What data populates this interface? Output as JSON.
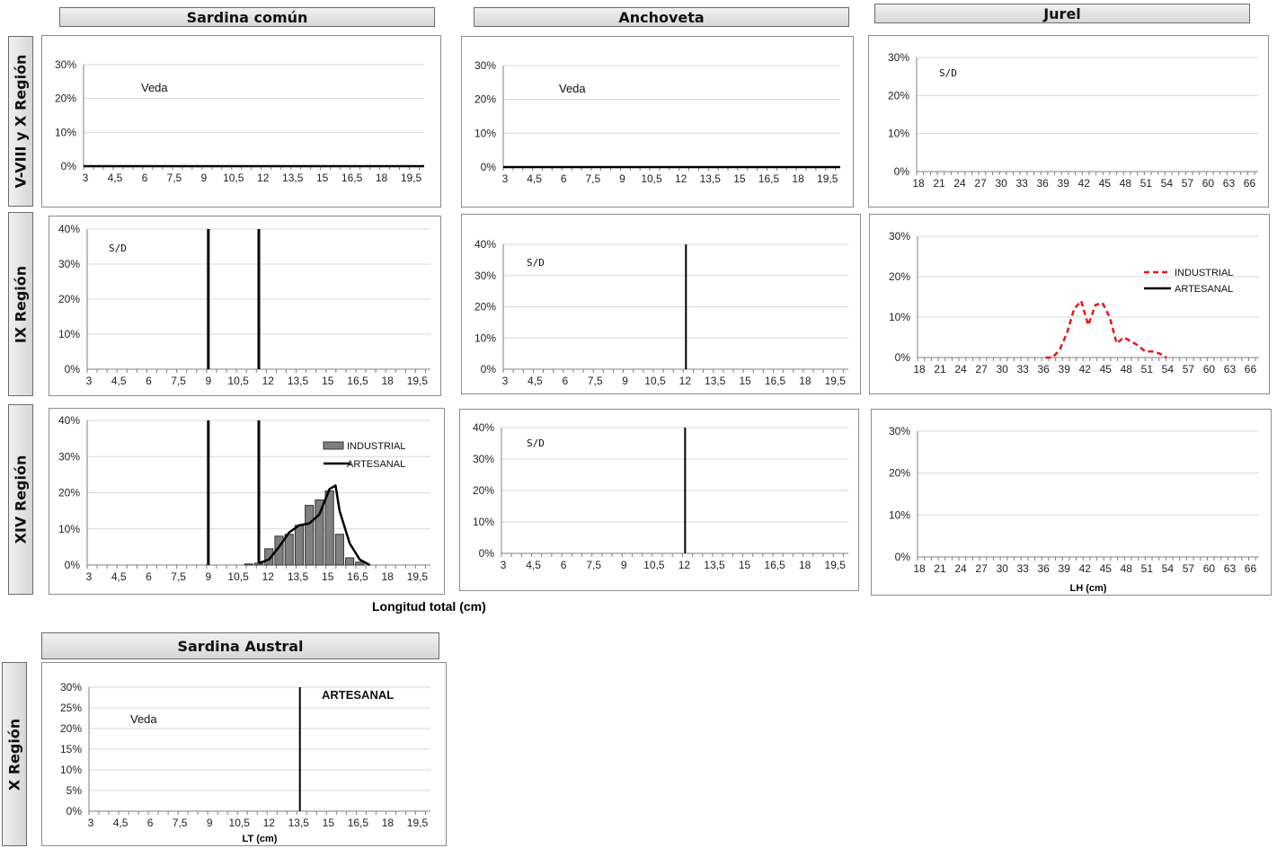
{
  "columns": {
    "sardina": "Sardina común",
    "anchoveta": "Anchoveta",
    "jurel": "Jurel",
    "austral": "Sardina Austral"
  },
  "rows": {
    "r1": "V-VIII y X Región",
    "r2": "IX Región",
    "r3": "XIV Región",
    "r4": "X Región"
  },
  "x_axis_title": "Longitud total (cm)",
  "colors": {
    "industrial_jurel": "#e8151b",
    "industrial_bar": "#7f7f7f",
    "artesanal": "#000000",
    "grid": "#d9d9d9"
  },
  "chart_data": [
    {
      "id": "sardina-r1",
      "type": "line",
      "x_ticks": [
        "3",
        "4,5",
        "6",
        "7,5",
        "9",
        "10,5",
        "12",
        "13,5",
        "15",
        "16,5",
        "18",
        "19,5"
      ],
      "xlim": [
        3,
        20
      ],
      "ylim": [
        0,
        30
      ],
      "y_ticks": [
        "0%",
        "10%",
        "20%",
        "30%"
      ],
      "annotations": [
        "Veda"
      ],
      "series": [
        {
          "values": [
            [
              3,
              0
            ],
            [
              20,
              0
            ]
          ]
        }
      ]
    },
    {
      "id": "anchoveta-r1",
      "type": "line",
      "x_ticks": [
        "3",
        "4,5",
        "6",
        "7,5",
        "9",
        "10,5",
        "12",
        "13,5",
        "15",
        "16,5",
        "18",
        "19,5"
      ],
      "xlim": [
        3,
        20
      ],
      "ylim": [
        0,
        30
      ],
      "y_ticks": [
        "0%",
        "10%",
        "20%",
        "30%"
      ],
      "annotations": [
        "Veda"
      ],
      "series": [
        {
          "values": [
            [
              3,
              0
            ],
            [
              20,
              0
            ]
          ]
        }
      ]
    },
    {
      "id": "jurel-r1",
      "type": "line",
      "x_ticks": [
        "18",
        "21",
        "24",
        "27",
        "30",
        "33",
        "36",
        "39",
        "42",
        "45",
        "48",
        "51",
        "54",
        "57",
        "60",
        "63",
        "66"
      ],
      "xlim": [
        18,
        66
      ],
      "ylim": [
        0,
        30
      ],
      "y_ticks": [
        "0%",
        "10%",
        "20%",
        "30%"
      ],
      "annotations": [
        "S/D"
      ],
      "series": []
    },
    {
      "id": "sardina-r2",
      "type": "line",
      "x_ticks": [
        "3",
        "4,5",
        "6",
        "7,5",
        "9",
        "10,5",
        "12",
        "13,5",
        "15",
        "16,5",
        "18",
        "19,5"
      ],
      "xlim": [
        3,
        20
      ],
      "ylim": [
        0,
        40
      ],
      "y_ticks": [
        "0%",
        "10%",
        "20%",
        "30%",
        "40%"
      ],
      "annotations": [
        "S/D"
      ],
      "vlines": [
        9,
        11.5
      ],
      "series": []
    },
    {
      "id": "anchoveta-r2",
      "type": "line",
      "x_ticks": [
        "3",
        "4,5",
        "6",
        "7,5",
        "9",
        "10,5",
        "12",
        "13,5",
        "15",
        "16,5",
        "18",
        "19,5"
      ],
      "xlim": [
        3,
        20
      ],
      "ylim": [
        0,
        40
      ],
      "y_ticks": [
        "0%",
        "10%",
        "20%",
        "30%",
        "40%"
      ],
      "annotations": [
        "S/D"
      ],
      "vlines": [
        12
      ],
      "series": []
    },
    {
      "id": "jurel-r2",
      "type": "line",
      "x_ticks": [
        "18",
        "21",
        "24",
        "27",
        "30",
        "33",
        "36",
        "39",
        "42",
        "45",
        "48",
        "51",
        "54",
        "57",
        "60",
        "63",
        "66"
      ],
      "xlim": [
        18,
        66
      ],
      "ylim": [
        0,
        30
      ],
      "y_ticks": [
        "0%",
        "10%",
        "20%",
        "30%"
      ],
      "legend": [
        "INDUSTRIAL",
        "ARTESANAL"
      ],
      "series": [
        {
          "name": "INDUSTRIAL",
          "style": "dashed",
          "values": [
            [
              36,
              0
            ],
            [
              37,
              0
            ],
            [
              38,
              2
            ],
            [
              39,
              6
            ],
            [
              40,
              12
            ],
            [
              41,
              14
            ],
            [
              42,
              8
            ],
            [
              43,
              13
            ],
            [
              44,
              13.5
            ],
            [
              45,
              10
            ],
            [
              46,
              3.5
            ],
            [
              47,
              5
            ],
            [
              48,
              4
            ],
            [
              49,
              3
            ],
            [
              50,
              1.5
            ],
            [
              51,
              1.5
            ],
            [
              52,
              1
            ],
            [
              53,
              0
            ]
          ]
        },
        {
          "name": "ARTESANAL",
          "values": []
        }
      ]
    },
    {
      "id": "sardina-r3",
      "type": "bar",
      "x_ticks": [
        "3",
        "4,5",
        "6",
        "7,5",
        "9",
        "10,5",
        "12",
        "13,5",
        "15",
        "16,5",
        "18",
        "19,5"
      ],
      "xlim": [
        3,
        20
      ],
      "ylim": [
        0,
        40
      ],
      "y_ticks": [
        "0%",
        "10%",
        "20%",
        "30%",
        "40%"
      ],
      "legend": [
        "INDUSTRIAL",
        "ARTESANAL"
      ],
      "vlines": [
        9,
        11.5
      ],
      "series": [
        {
          "name": "INDUSTRIAL",
          "values": [
            [
              11,
              0.3
            ],
            [
              11.5,
              0.5
            ],
            [
              12,
              4.5
            ],
            [
              12.5,
              8
            ],
            [
              13,
              8.5
            ],
            [
              13.5,
              11
            ],
            [
              14,
              16.5
            ],
            [
              14.5,
              18
            ],
            [
              15,
              20.5
            ],
            [
              15.5,
              8.5
            ],
            [
              16,
              2
            ],
            [
              16.5,
              0.8
            ]
          ]
        },
        {
          "name": "ARTESANAL",
          "values": [
            [
              11.5,
              0.5
            ],
            [
              12,
              1.5
            ],
            [
              12.5,
              5
            ],
            [
              13,
              9
            ],
            [
              13.5,
              11
            ],
            [
              14,
              11.5
            ],
            [
              14.5,
              14
            ],
            [
              15,
              21
            ],
            [
              15.3,
              22
            ],
            [
              15.5,
              15
            ],
            [
              16,
              6
            ],
            [
              16.5,
              1.5
            ],
            [
              17,
              0
            ]
          ]
        }
      ]
    },
    {
      "id": "anchoveta-r3",
      "type": "line",
      "x_ticks": [
        "3",
        "4,5",
        "6",
        "7,5",
        "9",
        "10,5",
        "12",
        "13,5",
        "15",
        "16,5",
        "18",
        "19,5"
      ],
      "xlim": [
        3,
        20
      ],
      "ylim": [
        0,
        40
      ],
      "y_ticks": [
        "0%",
        "10%",
        "20%",
        "30%",
        "40%"
      ],
      "annotations": [
        "S/D"
      ],
      "vlines": [
        12
      ],
      "series": []
    },
    {
      "id": "jurel-r3",
      "type": "line",
      "x_ticks": [
        "18",
        "21",
        "24",
        "27",
        "30",
        "33",
        "36",
        "39",
        "42",
        "45",
        "48",
        "51",
        "54",
        "57",
        "60",
        "63",
        "66"
      ],
      "xlim": [
        18,
        66
      ],
      "ylim": [
        0,
        30
      ],
      "y_ticks": [
        "0%",
        "10%",
        "20%",
        "30%"
      ],
      "xlabel": "LH (cm)",
      "series": []
    },
    {
      "id": "austral-r4",
      "type": "line",
      "x_ticks": [
        "3",
        "4,5",
        "6",
        "7,5",
        "9",
        "10,5",
        "12",
        "13,5",
        "15",
        "16,5",
        "18",
        "19,5"
      ],
      "xlim": [
        3,
        20
      ],
      "ylim": [
        0,
        30
      ],
      "y_ticks": [
        "0%",
        "5%",
        "10%",
        "15%",
        "20%",
        "25%",
        "30%"
      ],
      "xlabel": "LT (cm)",
      "annotations": [
        "Veda",
        "ARTESANAL"
      ],
      "vlines": [
        13.5
      ],
      "series": []
    }
  ]
}
